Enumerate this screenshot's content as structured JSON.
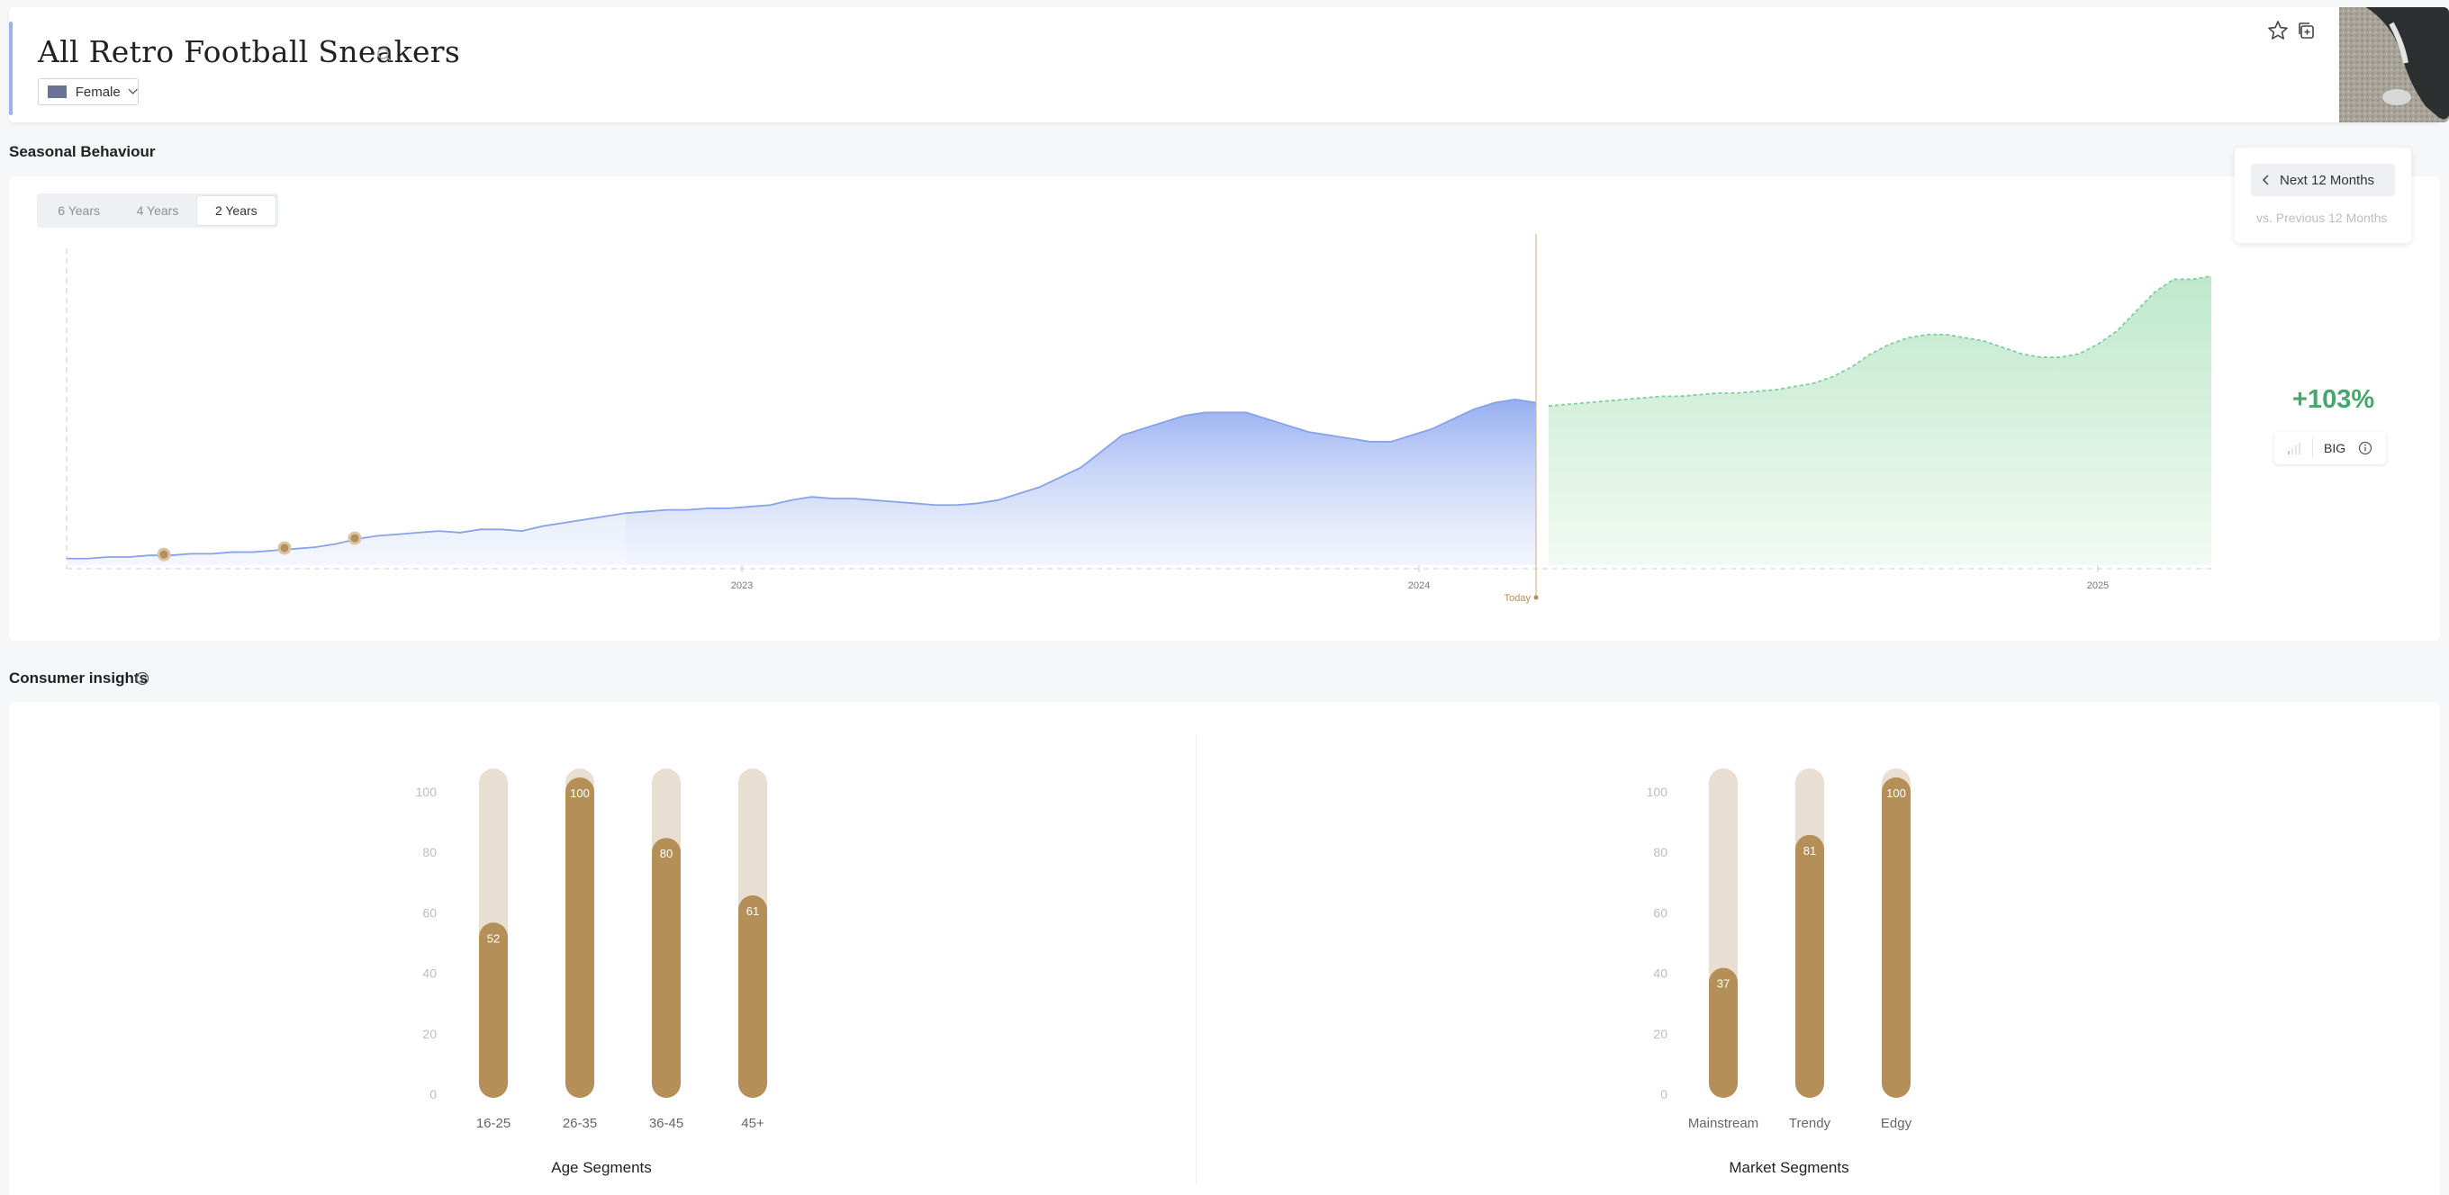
{
  "header": {
    "title": "All Retro Football Sneakers",
    "gender_filter": "Female"
  },
  "seasonal": {
    "section_title": "Seasonal Behaviour",
    "range_tabs": [
      "6 Years",
      "4 Years",
      "2 Years"
    ],
    "active_tab": "2 Years",
    "next_period_label": "Next 12 Months",
    "comparison_label": "vs. Previous 12 Months",
    "growth": "+103%",
    "badge": "BIG",
    "today_label": "Today",
    "chart_data": {
      "type": "area",
      "x_ticks": [
        "2023",
        "2024",
        "2025"
      ],
      "history": [
        2,
        2,
        2.5,
        2.5,
        3,
        3,
        3.5,
        3.5,
        4,
        4,
        4.5,
        5,
        5.5,
        6.5,
        8,
        9,
        9.5,
        10,
        10.5,
        10,
        11,
        11,
        10.5,
        12,
        13,
        14,
        15,
        16,
        16.5,
        17,
        17,
        17.5,
        17.5,
        18,
        18.5,
        20,
        21,
        20.5,
        20.5,
        20,
        19.5,
        19,
        18.5,
        18.5,
        19,
        20,
        22,
        24,
        27,
        30,
        35,
        40,
        42,
        44,
        46,
        47,
        47,
        47,
        45,
        43,
        41,
        40,
        39,
        38,
        38,
        40,
        42,
        45,
        48,
        50,
        51,
        50
      ],
      "forecast": [
        49,
        49.5,
        50,
        50.5,
        51,
        51.5,
        52,
        52,
        52.5,
        53,
        53,
        53.5,
        54,
        55,
        56,
        58,
        61,
        65,
        68,
        70,
        71,
        71,
        70,
        69,
        67,
        65,
        64,
        64,
        65,
        68,
        72,
        78,
        84,
        88,
        88,
        89
      ],
      "markers": 3
    }
  },
  "consumer": {
    "section_title": "Consumer insights",
    "y_ticks": [
      "100",
      "80",
      "60",
      "40",
      "20",
      "0"
    ],
    "age": {
      "title": "Age Segments",
      "categories": [
        "16-25",
        "26-35",
        "36-45",
        "45+"
      ],
      "values": [
        52,
        100,
        80,
        61
      ]
    },
    "market": {
      "title": "Market Segments",
      "categories": [
        "Mainstream",
        "Trendy",
        "Edgy"
      ],
      "values": [
        37,
        81,
        100
      ]
    },
    "colors": {
      "bar_fill": "#b48f57",
      "bar_track": "#e8dfd2"
    }
  }
}
